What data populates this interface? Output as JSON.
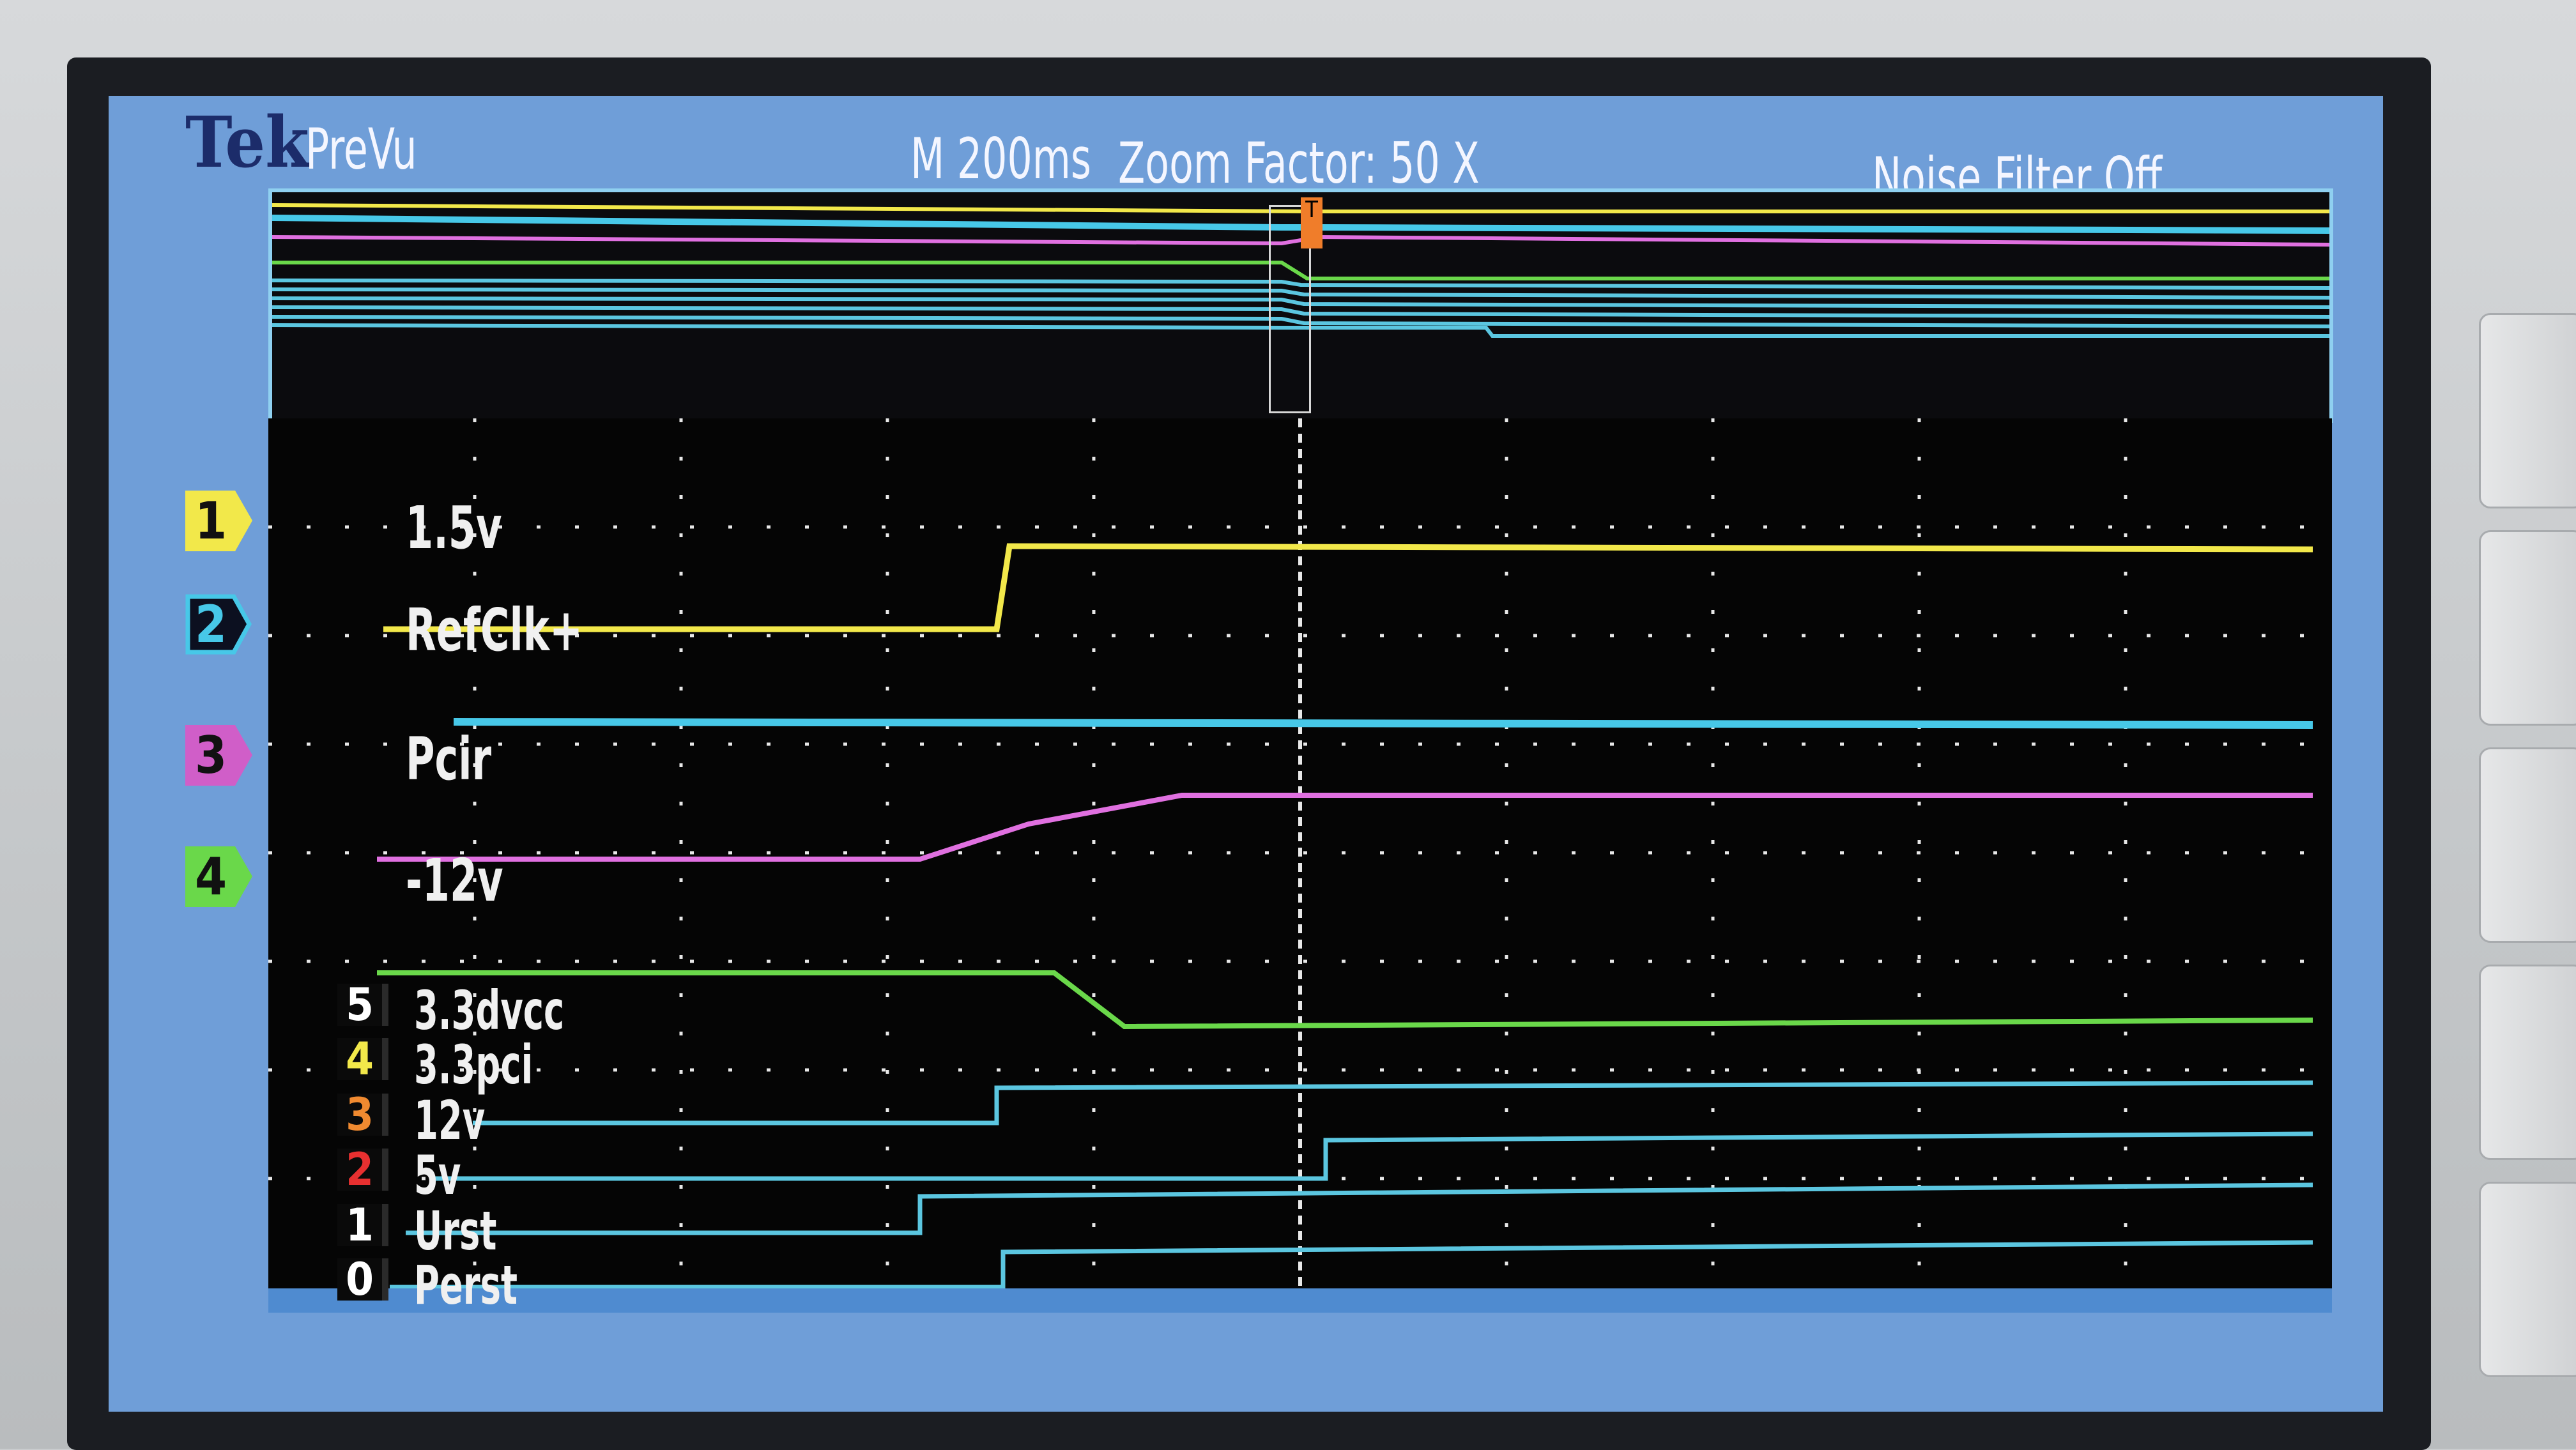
{
  "header": {
    "brand": "Tek",
    "mode": "PreVu",
    "timebase": "M 200ms",
    "zoom": "Zoom Factor: 50 X",
    "noise_filter": "Noise Filter Off"
  },
  "analog_channels": [
    {
      "number": "1",
      "label": "1.5v",
      "color": "#f2e84a"
    },
    {
      "number": "2",
      "label": "RefClk+",
      "color": "#47c8e8"
    },
    {
      "number": "3",
      "label": "Pcir",
      "color": "#e070e0"
    },
    {
      "number": "4",
      "label": "-12v",
      "color": "#6ad84a"
    }
  ],
  "digital_channels": [
    {
      "number": "5",
      "label": "3.3dvcc",
      "color": "#5bc6e0"
    },
    {
      "number": "4",
      "label": "3.3pci",
      "color": "#5bc6e0"
    },
    {
      "number": "3",
      "label": "12v",
      "color": "#5bc6e0"
    },
    {
      "number": "2",
      "label": "5v",
      "color": "#5bc6e0"
    },
    {
      "number": "1",
      "label": "Urst",
      "color": "#5bc6e0"
    },
    {
      "number": "0",
      "label": "Perst",
      "color": "#5bc6e0"
    }
  ],
  "colors": {
    "screen_background": "#6f9ed8",
    "graticule": "#e8e8e8",
    "trigger": "#f07d2a"
  }
}
